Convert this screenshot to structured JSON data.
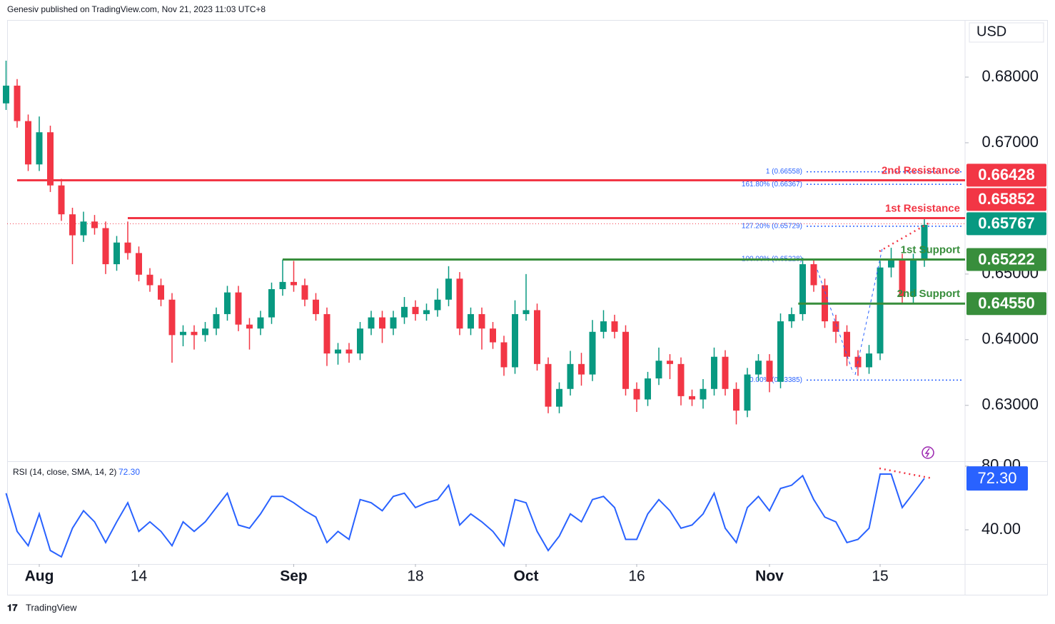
{
  "header": {
    "publisher": "Genesiv published on TradingView.com, Nov 21, 2023 11:03 UTC+8",
    "currency": "USD",
    "footer": "TradingView"
  },
  "chart_data": {
    "type": "candlestick",
    "xticks": [
      {
        "value": 3,
        "label": "Aug"
      },
      {
        "value": 12,
        "label": "14"
      },
      {
        "value": 26,
        "label": "Sep"
      },
      {
        "value": 37,
        "label": "18"
      },
      {
        "value": 47,
        "label": "Oct"
      },
      {
        "value": 57,
        "label": "16"
      },
      {
        "value": 69,
        "label": "Nov"
      },
      {
        "value": 79,
        "label": "15"
      }
    ],
    "open": [
      0.676,
      0.6787,
      0.6733,
      0.6667,
      0.6716,
      0.6635,
      0.6591,
      0.6559,
      0.658,
      0.657,
      0.6515,
      0.6548,
      0.6532,
      0.6499,
      0.6483,
      0.6461,
      0.6407,
      0.6412,
      0.6407,
      0.6417,
      0.6439,
      0.6472,
      0.6423,
      0.6417,
      0.6434,
      0.6477,
      0.6488,
      0.6483,
      0.6461,
      0.6439,
      0.6379,
      0.6385,
      0.6379,
      0.6417,
      0.6434,
      0.6417,
      0.6434,
      0.645,
      0.6439,
      0.6445,
      0.6461,
      0.6493,
      0.6417,
      0.6439,
      0.6417,
      0.6396,
      0.6358,
      0.6439,
      0.6445,
      0.6363,
      0.6298,
      0.6325,
      0.6363,
      0.6347,
      0.6412,
      0.6428,
      0.6412,
      0.6325,
      0.6309,
      0.6341,
      0.6368,
      0.6363,
      0.6314,
      0.6309,
      0.6325,
      0.6374,
      0.6325,
      0.6292,
      0.6347,
      0.6368,
      0.6336,
      0.6428,
      0.6439,
      0.6515,
      0.6483,
      0.6428,
      0.6412,
      0.6374,
      0.6358,
      0.6379,
      0.651,
      0.6521,
      0.6466,
      0.6521
    ],
    "high": [
      0.6825,
      0.6797,
      0.6743,
      0.674,
      0.6726,
      0.6645,
      0.6601,
      0.6595,
      0.659,
      0.658,
      0.6558,
      0.658,
      0.6542,
      0.6509,
      0.6493,
      0.6471,
      0.6422,
      0.6422,
      0.6427,
      0.6449,
      0.6482,
      0.6482,
      0.6433,
      0.6444,
      0.6487,
      0.6522,
      0.652,
      0.6493,
      0.6471,
      0.6449,
      0.6395,
      0.6395,
      0.6427,
      0.6444,
      0.6444,
      0.6444,
      0.6465,
      0.646,
      0.6455,
      0.6478,
      0.6512,
      0.6503,
      0.6449,
      0.6449,
      0.6427,
      0.6406,
      0.646,
      0.65,
      0.6455,
      0.6373,
      0.6335,
      0.6383,
      0.638,
      0.643,
      0.6445,
      0.6438,
      0.6422,
      0.6335,
      0.6351,
      0.6388,
      0.6378,
      0.6373,
      0.6324,
      0.634,
      0.6388,
      0.6384,
      0.6335,
      0.6357,
      0.6378,
      0.6378,
      0.644,
      0.6449,
      0.6525,
      0.6522,
      0.6493,
      0.6438,
      0.6422,
      0.6384,
      0.6392,
      0.652,
      0.654,
      0.6531,
      0.6531,
      0.6585
    ],
    "low": [
      0.675,
      0.6723,
      0.6657,
      0.6657,
      0.6625,
      0.6581,
      0.6515,
      0.6549,
      0.656,
      0.65,
      0.6505,
      0.6522,
      0.6489,
      0.6473,
      0.6451,
      0.6365,
      0.639,
      0.6385,
      0.6397,
      0.6407,
      0.6429,
      0.6413,
      0.6385,
      0.6407,
      0.6424,
      0.6467,
      0.6473,
      0.6451,
      0.6429,
      0.636,
      0.6362,
      0.6365,
      0.6369,
      0.6407,
      0.6395,
      0.6407,
      0.6424,
      0.6429,
      0.6429,
      0.6435,
      0.6451,
      0.6407,
      0.6407,
      0.6385,
      0.6386,
      0.6345,
      0.6348,
      0.6429,
      0.6353,
      0.6288,
      0.6288,
      0.6315,
      0.633,
      0.6337,
      0.6402,
      0.6402,
      0.6315,
      0.629,
      0.6299,
      0.6331,
      0.634,
      0.63,
      0.6299,
      0.6295,
      0.6315,
      0.6315,
      0.6271,
      0.6282,
      0.6337,
      0.632,
      0.6326,
      0.6418,
      0.6429,
      0.6473,
      0.6418,
      0.6395,
      0.636,
      0.6345,
      0.6348,
      0.6369,
      0.6495,
      0.6456,
      0.6456,
      0.6511
    ],
    "close": [
      0.6787,
      0.6733,
      0.6667,
      0.6716,
      0.6635,
      0.6591,
      0.6559,
      0.658,
      0.657,
      0.6515,
      0.6548,
      0.6532,
      0.6499,
      0.6483,
      0.6461,
      0.6407,
      0.6412,
      0.6407,
      0.6417,
      0.6439,
      0.6472,
      0.6423,
      0.6417,
      0.6434,
      0.6477,
      0.6488,
      0.6483,
      0.6461,
      0.6439,
      0.6379,
      0.6385,
      0.6379,
      0.6417,
      0.6434,
      0.6417,
      0.6434,
      0.645,
      0.6439,
      0.6445,
      0.6461,
      0.6493,
      0.6417,
      0.6439,
      0.6417,
      0.6396,
      0.6358,
      0.6439,
      0.6445,
      0.6363,
      0.6298,
      0.6325,
      0.6363,
      0.6347,
      0.6412,
      0.6428,
      0.6412,
      0.6325,
      0.6309,
      0.6341,
      0.6368,
      0.6363,
      0.6314,
      0.6309,
      0.6325,
      0.6374,
      0.6325,
      0.6292,
      0.6347,
      0.6368,
      0.6336,
      0.6428,
      0.6439,
      0.6515,
      0.6483,
      0.6428,
      0.6412,
      0.6374,
      0.6358,
      0.6379,
      0.651,
      0.6521,
      0.6466,
      0.6521,
      0.6575
    ],
    "up_color": "#089981",
    "down_color": "#f23645",
    "ylim": [
      0.6216,
      0.6887
    ],
    "yticks": [
      {
        "value": 0.63,
        "label": "0.63000"
      },
      {
        "value": 0.64,
        "label": "0.64000"
      },
      {
        "value": 0.65,
        "label": "0.65000"
      },
      {
        "value": 0.67,
        "label": "0.67000"
      },
      {
        "value": 0.68,
        "label": "0.68000"
      }
    ],
    "levels": [
      {
        "name": "2nd Resistance",
        "value": 0.66428,
        "color": "#f23645"
      },
      {
        "name": "1st Resistance",
        "value": 0.65852,
        "color": "#f23645"
      },
      {
        "name": "1st Support",
        "value": 0.65222,
        "color": "#388e3c"
      },
      {
        "name": "2nd Support",
        "value": 0.6455,
        "value_label": "0.64550",
        "color": "#388e3c"
      }
    ],
    "last_price": {
      "value": 0.65767,
      "color": "#089981"
    },
    "fib": [
      {
        "label": "1 (0.66558)",
        "value": 0.66558
      },
      {
        "label": "161.80% (0.66367)",
        "value": 0.66367
      },
      {
        "label": "127.20% (0.65729)",
        "value": 0.65729
      },
      {
        "label": "100.00% (0.65228)",
        "value": 0.65228
      },
      {
        "label": "0.00% (0.63385)",
        "value": 0.63385
      }
    ],
    "fib_color": "#2962ff",
    "rsi": {
      "title": "RSI (14, close, SMA, 14, 2)",
      "color": "#2962ff",
      "values": [
        63,
        39,
        30,
        50,
        27,
        23,
        41,
        52,
        45,
        32,
        45,
        57,
        39,
        45,
        39,
        30,
        45,
        39,
        45,
        54,
        63,
        43,
        41,
        50,
        61,
        61,
        57,
        52,
        48,
        32,
        39,
        34,
        59,
        57,
        52,
        61,
        63,
        54,
        57,
        59,
        68,
        43,
        50,
        45,
        39,
        30,
        59,
        57,
        39,
        27,
        36,
        50,
        45,
        59,
        61,
        54,
        34,
        34,
        50,
        59,
        52,
        41,
        43,
        50,
        63,
        41,
        32,
        54,
        61,
        52,
        66,
        68,
        74,
        59,
        48,
        45,
        32,
        34,
        41,
        75,
        75,
        54,
        63,
        72.3
      ],
      "last_label": "72.30",
      "ylim": [
        18.5,
        82.2
      ],
      "yticks": [
        {
          "value": 40,
          "label": "40.00"
        },
        {
          "value": 80,
          "label": "80.00"
        }
      ]
    }
  }
}
